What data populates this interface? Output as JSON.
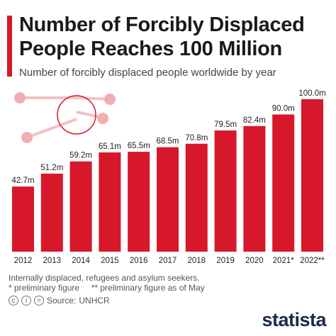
{
  "header": {
    "title_line1": "Number of Forcibly Displaced",
    "title_line2": "People Reaches 100 Million",
    "subtitle": "Number of forcibly displaced people worldwide by year"
  },
  "chart_data": {
    "type": "bar",
    "categories": [
      "2012",
      "2013",
      "2014",
      "2015",
      "2016",
      "2017",
      "2018",
      "2019",
      "2020",
      "2021*",
      "2022**"
    ],
    "values": [
      42.7,
      51.2,
      59.2,
      65.1,
      65.5,
      68.5,
      70.8,
      79.5,
      82.4,
      90.0,
      100.0
    ],
    "data_labels": [
      "42.7m",
      "51.2m",
      "59.2m",
      "65.1m",
      "65.5m",
      "68.5m",
      "70.8m",
      "79.5m",
      "82.4m",
      "90.0m",
      "100.0m"
    ],
    "title": "",
    "xlabel": "",
    "ylabel": "",
    "ylim": [
      0,
      100
    ],
    "bar_color": "#d7182a",
    "grid": false
  },
  "footer": {
    "note": "Internally displaced, refugees and asylum seekers.",
    "footnotes": "* preliminary figure     ** preliminary figure as of May",
    "source_prefix": "Source:",
    "source": "UNHCR",
    "logo": "statista",
    "cc_icon": "cc-license-icon"
  }
}
